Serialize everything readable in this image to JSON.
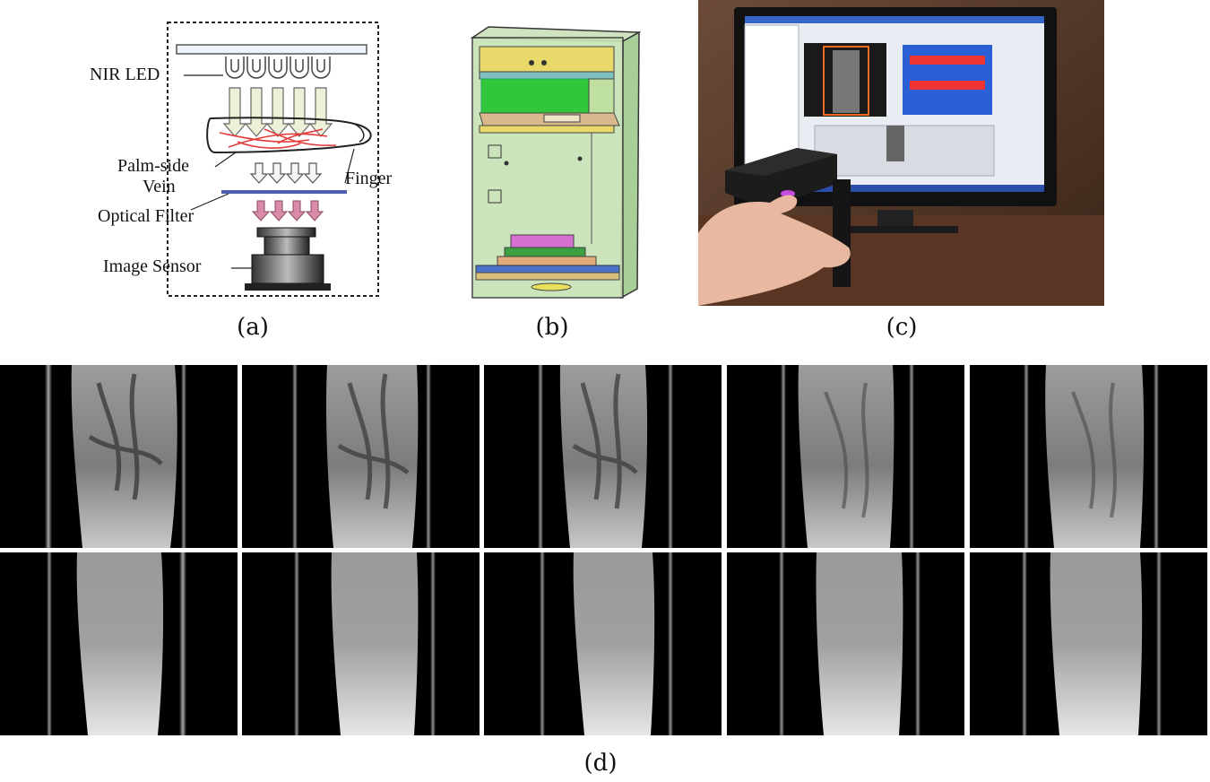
{
  "panel_a": {
    "labels": {
      "nir_led": "NIR LED",
      "palm_side": "Palm-side",
      "vein": "Vein",
      "finger": "Finger",
      "optical_filter": "Optical Filter",
      "image_sensor": "Image Sensor"
    },
    "caption": "(a)"
  },
  "panel_b": {
    "caption": "(b)"
  },
  "panel_c": {
    "caption": "(c)"
  },
  "panel_d": {
    "caption": "(d)"
  },
  "colors": {
    "led_arrow": "#eef0d8",
    "filter_arrow": "#d98aa8",
    "vein_lines": "#e23a3a",
    "filter_bar": "#4b5fae",
    "case_green": "#b9dca0",
    "case_yellow": "#e8d96a",
    "screen_blue": "#2a5fd6"
  }
}
